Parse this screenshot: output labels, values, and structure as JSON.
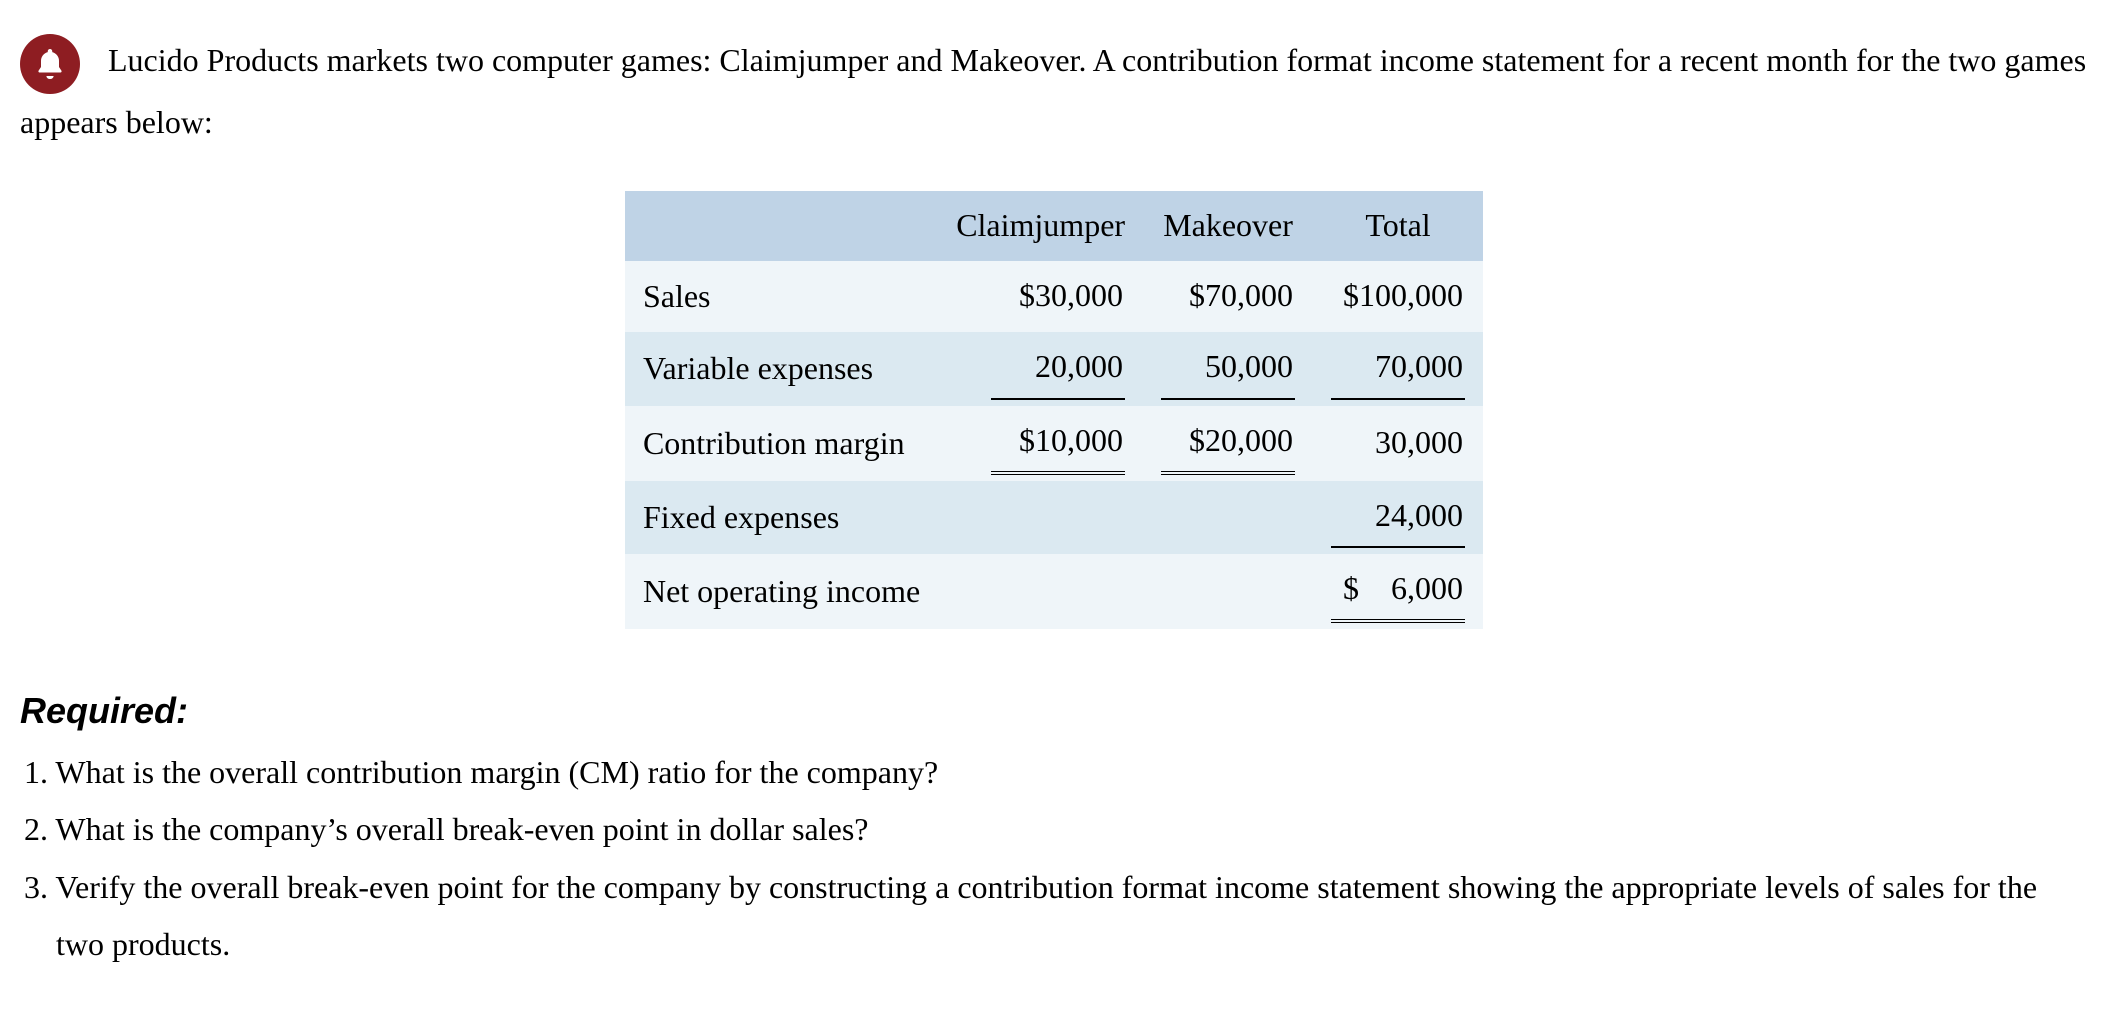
{
  "colors": {
    "bell_bg": "#8e1d22",
    "bell_fg": "#ffffff",
    "header_bg": "#bfd3e6",
    "row_odd_bg": "#eff5f9",
    "row_even_bg": "#dbe9f1",
    "text": "#000000",
    "page_bg": "#ffffff"
  },
  "typography": {
    "body_family": "Georgia/Times",
    "body_size_pt": 24,
    "required_family": "Arial/Helvetica",
    "required_size_pt": 27,
    "required_weight": "bold",
    "required_style": "italic"
  },
  "intro": {
    "text": "Lucido Products markets two computer games: Claimjumper and Makeover. A contribution format income statement for a recent month for the two games appears below:"
  },
  "table": {
    "type": "table",
    "columns": [
      "",
      "Claimjumper",
      "Makeover",
      "Total"
    ],
    "rows": [
      {
        "label": "Sales",
        "cells": [
          {
            "text": "$30,000",
            "underline": "none"
          },
          {
            "text": "$70,000",
            "underline": "none"
          },
          {
            "text": "$100,000",
            "underline": "none"
          }
        ]
      },
      {
        "label": "Variable expenses",
        "cells": [
          {
            "text": "20,000",
            "underline": "single"
          },
          {
            "text": "50,000",
            "underline": "single"
          },
          {
            "text": "70,000",
            "underline": "single"
          }
        ]
      },
      {
        "label": "Contribution margin",
        "cells": [
          {
            "text": "$10,000",
            "underline": "double"
          },
          {
            "text": "$20,000",
            "underline": "double"
          },
          {
            "text": "30,000",
            "underline": "none"
          }
        ]
      },
      {
        "label": "Fixed expenses",
        "cells": [
          {
            "text": "",
            "underline": "none"
          },
          {
            "text": "",
            "underline": "none"
          },
          {
            "text": "24,000",
            "underline": "single"
          }
        ]
      },
      {
        "label": "Net operating income",
        "cells": [
          {
            "text": "",
            "underline": "none"
          },
          {
            "text": "",
            "underline": "none"
          },
          {
            "text": "$  6,000",
            "underline": "double"
          }
        ]
      }
    ]
  },
  "required": {
    "heading": "Required:",
    "items": [
      "1. What is the overall contribution margin (CM) ratio for the company?",
      "2. What is the company’s overall break-even point in dollar sales?",
      "3. Verify the overall break-even point for the company by constructing a contribution format income statement showing the appropriate levels of sales for the two products."
    ]
  }
}
